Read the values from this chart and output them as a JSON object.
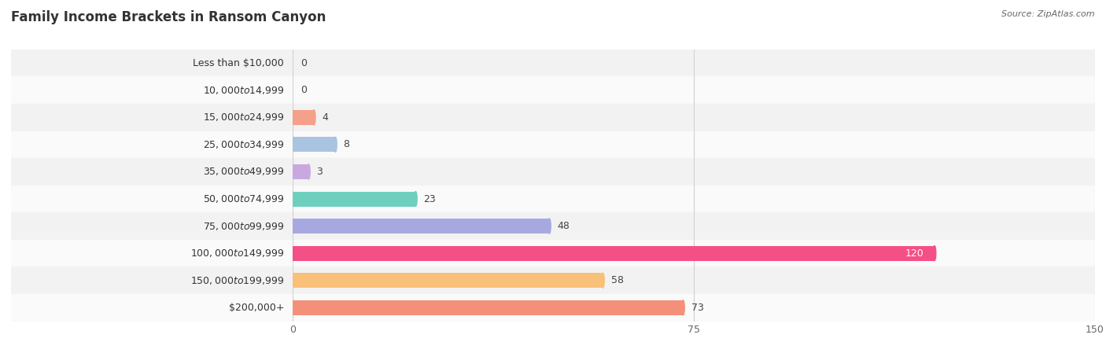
{
  "title": "Family Income Brackets in Ransom Canyon",
  "source": "Source: ZipAtlas.com",
  "categories": [
    "Less than $10,000",
    "$10,000 to $14,999",
    "$15,000 to $24,999",
    "$25,000 to $34,999",
    "$35,000 to $49,999",
    "$50,000 to $74,999",
    "$75,000 to $99,999",
    "$100,000 to $149,999",
    "$150,000 to $199,999",
    "$200,000+"
  ],
  "values": [
    0,
    0,
    4,
    8,
    3,
    23,
    48,
    120,
    58,
    73
  ],
  "bar_colors": [
    "#f07aaa",
    "#f9c07a",
    "#f4a08a",
    "#a8c4e0",
    "#c9a8e0",
    "#6ecfbf",
    "#a8a8e0",
    "#f45085",
    "#f9c07a",
    "#f4907a"
  ],
  "bg_row_colors": [
    "#f2f2f2",
    "#fafafa"
  ],
  "xlim": [
    0,
    150
  ],
  "xticks": [
    0,
    75,
    150
  ],
  "background_color": "#ffffff",
  "title_fontsize": 12,
  "label_fontsize": 9,
  "value_fontsize": 9,
  "bar_height": 0.55
}
